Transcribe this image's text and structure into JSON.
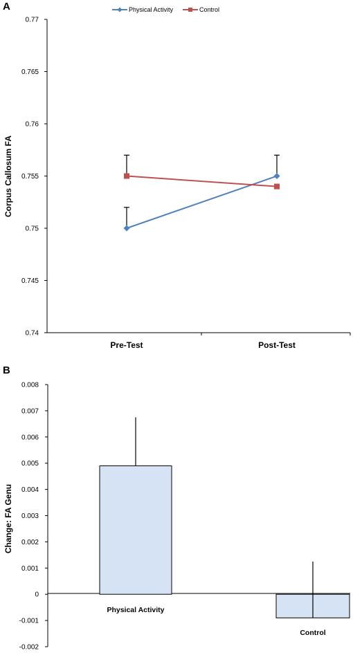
{
  "chart_data": [
    {
      "panel": "A",
      "type": "line",
      "title": "",
      "xlabel": "",
      "ylabel": "Corpus Callosum FA",
      "categories": [
        "Pre-Test",
        "Post-Test"
      ],
      "ylim": [
        0.74,
        0.77
      ],
      "yticks": [
        "0.74",
        "0.745",
        "0.75",
        "0.755",
        "0.76",
        "0.765",
        "0.77"
      ],
      "legend": "top-center",
      "series": [
        {
          "name": "Physical Activity",
          "color": "#4f81bd",
          "marker": "diamond",
          "values": [
            0.75,
            0.755
          ],
          "error_upper": [
            0.752,
            0.757
          ]
        },
        {
          "name": "Control",
          "color": "#c0504d",
          "marker": "square",
          "values": [
            0.755,
            0.754
          ],
          "error_upper": [
            0.757,
            null
          ]
        }
      ]
    },
    {
      "panel": "B",
      "type": "bar",
      "title": "",
      "xlabel": "",
      "ylabel": "Change: FA Genu",
      "ylim": [
        -0.002,
        0.008
      ],
      "yticks": [
        "-0.002",
        "-0.001",
        "0",
        "0.001",
        "0.002",
        "0.003",
        "0.004",
        "0.005",
        "0.006",
        "0.007",
        "0.008"
      ],
      "bar_color": "#d6e3f5",
      "categories": [
        "Physical Activity",
        "Control"
      ],
      "values": [
        0.0049,
        -0.0009
      ],
      "error_upper": [
        0.00675,
        0.00125
      ]
    }
  ]
}
